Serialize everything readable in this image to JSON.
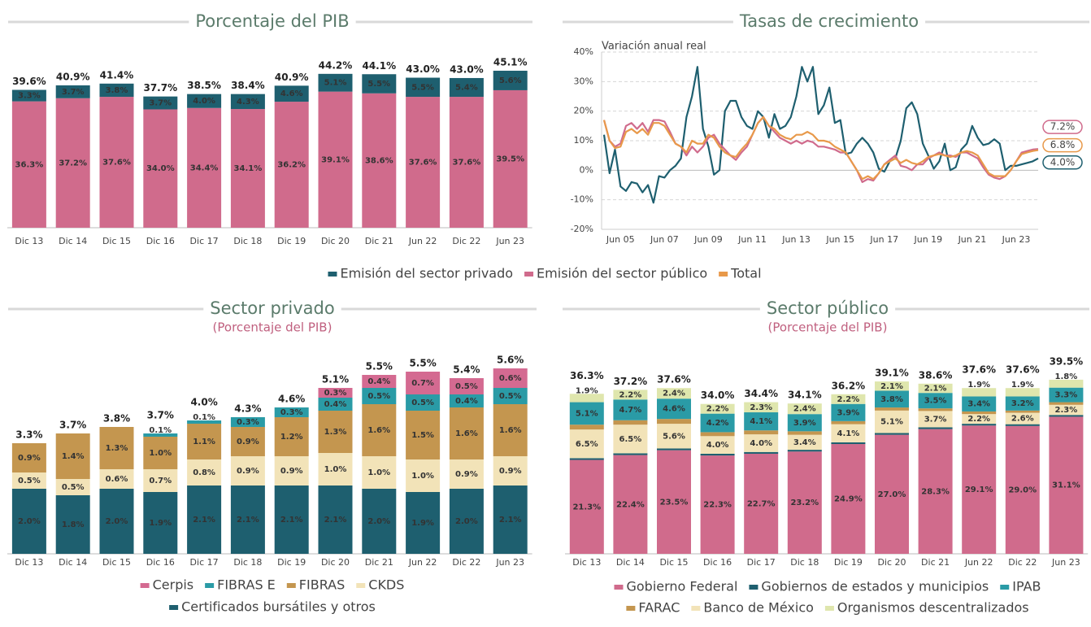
{
  "chart_data": [
    {
      "type": "stacked_bar",
      "title": "Porcentaje del PIB",
      "categories": [
        "Dic 13",
        "Dic 14",
        "Dic 15",
        "Dic 16",
        "Dic 17",
        "Dic 18",
        "Dic 19",
        "Dic 20",
        "Dic 21",
        "Jun 22",
        "Dic 22",
        "Jun 23"
      ],
      "series": [
        {
          "color": "#d06b8c",
          "values": [
            36.3,
            37.2,
            37.6,
            34.0,
            34.4,
            34.1,
            36.2,
            39.1,
            38.6,
            37.6,
            37.6,
            39.5
          ],
          "value_labels": [
            "36.3%",
            "37.2%",
            "37.6%",
            "34.0%",
            "34.4%",
            "34.1%",
            "36.2%",
            "39.1%",
            "38.6%",
            "37.6%",
            "37.6%",
            "39.5%"
          ]
        },
        {
          "color": "#1e5f6f",
          "values": [
            3.3,
            3.7,
            3.8,
            3.7,
            4.0,
            4.3,
            4.6,
            5.1,
            5.5,
            5.5,
            5.4,
            5.6
          ],
          "value_labels": [
            "3.3%",
            "3.7%",
            "3.8%",
            "3.7%",
            "4.0%",
            "4.3%",
            "4.6%",
            "5.1%",
            "5.5%",
            "5.5%",
            "5.4%",
            "5.6%"
          ]
        }
      ],
      "totals": [
        39.6,
        40.9,
        41.4,
        37.7,
        38.5,
        38.4,
        40.9,
        44.2,
        44.1,
        43.0,
        43.0,
        45.1
      ],
      "total_labels": [
        "39.6%",
        "40.9%",
        "41.4%",
        "37.7%",
        "38.5%",
        "38.4%",
        "40.9%",
        "44.2%",
        "44.1%",
        "43.0%",
        "43.0%",
        "45.1%"
      ],
      "ylim": [
        0,
        50
      ]
    },
    {
      "type": "line",
      "title": "Tasas de crecimiento",
      "annotation": "Variación anual real",
      "categories": [
        null,
        null,
        null,
        "Jun 05",
        null,
        null,
        null,
        null,
        null,
        null,
        null,
        "Jun 07",
        null,
        null,
        null,
        null,
        null,
        null,
        null,
        "Jun 09",
        null,
        null,
        null,
        null,
        null,
        null,
        null,
        "Jun 11",
        null,
        null,
        null,
        null,
        null,
        null,
        null,
        "Jun 13",
        null,
        null,
        null,
        null,
        null,
        null,
        null,
        "Jun 15",
        null,
        null,
        null,
        null,
        null,
        null,
        null,
        "Jun 17",
        null,
        null,
        null,
        null,
        null,
        null,
        null,
        "Jun 19",
        null,
        null,
        null,
        null,
        null,
        null,
        null,
        "Jun 21",
        null,
        null,
        null,
        null,
        null,
        null,
        null,
        "Jun 23",
        null,
        null,
        null,
        null
      ],
      "series": [
        {
          "name": "Emisión del sector privado",
          "color": "#1e5f6f",
          "end_label": "4.0%",
          "values": [
            12,
            -1,
            7,
            -5.5,
            -7,
            -4,
            -4.5,
            -7.5,
            -5,
            -11,
            -2,
            -2.5,
            0,
            1.5,
            4,
            18,
            25,
            35,
            14,
            8,
            -1.5,
            0,
            20,
            23.5,
            23.5,
            18,
            15,
            14,
            20,
            18,
            11,
            19,
            14,
            15,
            18,
            25,
            35,
            30,
            35,
            19,
            22,
            28,
            16,
            17,
            5.5,
            6,
            9,
            11,
            9,
            6,
            0.5,
            -0.5,
            3,
            4,
            10,
            21,
            23,
            19,
            9,
            5,
            0.5,
            3,
            9,
            0,
            1,
            7,
            9,
            15,
            11,
            8.5,
            9,
            10.5,
            9,
            0,
            1.5,
            1.5,
            2,
            2.5,
            3,
            4.0
          ]
        },
        {
          "name": "Emisión del sector público",
          "color": "#d06b8c",
          "end_label": "7.2%",
          "values": [
            17,
            10,
            8,
            9,
            15,
            16,
            14,
            16,
            13,
            17,
            17,
            16.5,
            13,
            9,
            8,
            5,
            8,
            6,
            8,
            11,
            12,
            9,
            7,
            5,
            3.5,
            6,
            8,
            12,
            16,
            18,
            15,
            13,
            11,
            10,
            9,
            10,
            9,
            10,
            9.5,
            8,
            8,
            7.5,
            7,
            6,
            6,
            3,
            0,
            -4,
            -3,
            -3.5,
            -1,
            2,
            3.5,
            5,
            1.5,
            1,
            0,
            2,
            2,
            4,
            5,
            6,
            5,
            5,
            4.5,
            6,
            6,
            5,
            4,
            1,
            -1.5,
            -2.5,
            -3,
            -2,
            0,
            3,
            6,
            6.5,
            7,
            7.2
          ]
        },
        {
          "name": "Total",
          "color": "#e8994a",
          "end_label": "6.8%",
          "values": [
            17,
            10,
            7.5,
            8,
            13,
            14,
            12.5,
            14,
            12,
            16,
            16,
            15,
            12,
            9,
            8,
            6,
            10,
            9,
            9,
            12,
            11,
            8,
            6,
            5,
            4.5,
            7,
            9,
            12,
            16,
            18,
            15,
            14,
            12,
            11,
            10.5,
            12,
            12,
            13,
            12,
            10,
            10,
            9.5,
            8,
            7,
            6,
            3,
            0,
            -3,
            -2,
            -3,
            -1,
            2,
            3,
            4,
            2.5,
            3.5,
            2.5,
            2,
            3,
            4.5,
            5,
            5.5,
            5,
            4.5,
            5,
            6,
            6.5,
            6,
            5,
            2,
            -1,
            -2,
            -2,
            -2,
            0,
            3,
            5.5,
            6,
            6.5,
            6.8
          ]
        }
      ],
      "ylim": [
        -20,
        40
      ],
      "yticks": [
        {
          "value": -20,
          "label": "-20%"
        },
        {
          "value": -10,
          "label": "-10%"
        },
        {
          "value": 0,
          "label": "0%"
        },
        {
          "value": 10,
          "label": "10%"
        },
        {
          "value": 20,
          "label": "20%"
        },
        {
          "value": 30,
          "label": "30%"
        },
        {
          "value": 40,
          "label": "40%"
        }
      ],
      "grid": true
    },
    {
      "type": "stacked_bar",
      "title": "Sector privado",
      "subtitle": "(Porcentaje del PIB)",
      "categories": [
        "Dic 13",
        "Dic 14",
        "Dic 15",
        "Dic 16",
        "Dic 17",
        "Dic 18",
        "Dic 19",
        "Dic 20",
        "Dic 21",
        "Jun 22",
        "Dic 22",
        "Jun 23"
      ],
      "series": [
        {
          "name": "Cerpis",
          "color": "#d46a91",
          "values": [
            null,
            null,
            null,
            null,
            null,
            null,
            null,
            0.3,
            0.4,
            0.7,
            0.5,
            0.6
          ],
          "value_labels": [
            null,
            null,
            null,
            null,
            null,
            null,
            null,
            "0.3%",
            "0.4%",
            "0.7%",
            "0.5%",
            "0.6%"
          ]
        },
        {
          "name": "FIBRAS E",
          "color": "#2a9ba6",
          "values": [
            null,
            null,
            null,
            0.1,
            0.1,
            0.3,
            0.3,
            0.4,
            0.5,
            0.5,
            0.4,
            0.5
          ],
          "value_labels": [
            null,
            null,
            null,
            "0.1%",
            "0.1%",
            "0.3%",
            "0.3%",
            "0.4%",
            "0.5%",
            "0.5%",
            "0.4%",
            "0.5%"
          ]
        },
        {
          "name": "FIBRAS",
          "color": "#c4964f",
          "values": [
            0.9,
            1.4,
            1.3,
            1.0,
            1.1,
            0.9,
            1.2,
            1.3,
            1.6,
            1.5,
            1.6,
            1.6
          ],
          "value_labels": [
            "0.9%",
            "1.4%",
            "1.3%",
            "1.0%",
            "1.1%",
            "0.9%",
            "1.2%",
            "1.3%",
            "1.6%",
            "1.5%",
            "1.6%",
            "1.6%"
          ]
        },
        {
          "name": "CKDS",
          "color": "#f2e3b8",
          "values": [
            0.5,
            0.5,
            0.6,
            0.7,
            0.8,
            0.9,
            0.9,
            1.0,
            1.0,
            1.0,
            0.9,
            0.9
          ],
          "value_labels": [
            "0.5%",
            "0.5%",
            "0.6%",
            "0.7%",
            "0.8%",
            "0.9%",
            "0.9%",
            "1.0%",
            "1.0%",
            "1.0%",
            "0.9%",
            "0.9%"
          ]
        },
        {
          "name": "Certificados bursátiles y otros",
          "color": "#1e5f6f",
          "values": [
            2.0,
            1.8,
            2.0,
            1.9,
            2.1,
            2.1,
            2.1,
            2.1,
            2.0,
            1.9,
            2.0,
            2.1
          ],
          "value_labels": [
            "2.0%",
            "1.8%",
            "2.0%",
            "1.9%",
            "2.1%",
            "2.1%",
            "2.1%",
            "2.1%",
            "2.0%",
            "1.9%",
            "2.0%",
            "2.1%"
          ]
        }
      ],
      "totals": [
        3.3,
        3.7,
        3.8,
        3.7,
        4.0,
        4.3,
        4.6,
        5.1,
        5.5,
        5.5,
        5.4,
        5.6
      ],
      "total_labels": [
        "3.3%",
        "3.7%",
        "3.8%",
        "3.7%",
        "4.0%",
        "4.3%",
        "4.6%",
        "5.1%",
        "5.5%",
        "5.5%",
        "5.4%",
        "5.6%"
      ],
      "ylim": [
        0,
        7
      ]
    },
    {
      "type": "stacked_bar",
      "title": "Sector público",
      "subtitle": "(Porcentaje del PIB)",
      "categories": [
        "Dic 13",
        "Dic 14",
        "Dic 15",
        "Dic 16",
        "Dic 17",
        "Dic 18",
        "Dic 19",
        "Dic 20",
        "Dic 21",
        "Jun 22",
        "Dic 22",
        "Jun 23"
      ],
      "series": [
        {
          "name": "Gobierno Federal",
          "color": "#d06b8c",
          "values": [
            21.3,
            22.4,
            23.5,
            22.3,
            22.7,
            23.2,
            24.9,
            27.0,
            28.3,
            29.1,
            29.0,
            31.1
          ],
          "value_labels": [
            "21.3%",
            "22.4%",
            "23.5%",
            "22.3%",
            "22.7%",
            "23.2%",
            "24.9%",
            "27.0%",
            "28.3%",
            "29.1%",
            "29.0%",
            "31.1%"
          ]
        },
        {
          "name": "Gobiernos de estados y municipios",
          "color": "#1e5f6f",
          "values": [
            0.4,
            0.4,
            0.4,
            0.4,
            0.4,
            0.4,
            0.4,
            0.4,
            0.4,
            0.4,
            0.4,
            0.4
          ]
        },
        {
          "name": "IPAB",
          "color": "#2a9ba6",
          "values": [
            5.1,
            4.7,
            4.6,
            4.2,
            4.1,
            3.9,
            3.9,
            3.8,
            3.5,
            3.4,
            3.2,
            3.3
          ],
          "value_labels": [
            "5.1%",
            "4.7%",
            "4.6%",
            "4.2%",
            "4.1%",
            "3.9%",
            "3.9%",
            "3.8%",
            "3.5%",
            "3.4%",
            "3.2%",
            "3.3%"
          ]
        },
        {
          "name": "FARAC",
          "color": "#c4964f",
          "values": [
            1.1,
            1.0,
            1.1,
            0.9,
            0.9,
            0.8,
            0.7,
            0.7,
            0.6,
            0.6,
            0.5,
            0.6
          ]
        },
        {
          "name": "Banco de México",
          "color": "#f2e3b8",
          "values": [
            6.5,
            6.5,
            5.6,
            4.0,
            4.0,
            3.4,
            4.1,
            5.1,
            3.7,
            2.2,
            2.6,
            2.3
          ],
          "value_labels": [
            "6.5%",
            "6.5%",
            "5.6%",
            "4.0%",
            "4.0%",
            "3.4%",
            "4.1%",
            "5.1%",
            "3.7%",
            "2.2%",
            "2.6%",
            "2.3%"
          ]
        },
        {
          "name": "Organismos descentralizados",
          "color": "#dfe6ad",
          "values": [
            1.9,
            2.2,
            2.4,
            2.2,
            2.3,
            2.4,
            2.2,
            2.1,
            2.1,
            1.9,
            1.9,
            1.8
          ],
          "value_labels": [
            "1.9%",
            "2.2%",
            "2.4%",
            "2.2%",
            "2.3%",
            "2.4%",
            "2.2%",
            "2.1%",
            "2.1%",
            "1.9%",
            "1.9%",
            "1.8%"
          ]
        }
      ],
      "totals": [
        36.3,
        37.2,
        37.6,
        34.0,
        34.4,
        34.1,
        36.2,
        39.1,
        38.6,
        37.6,
        37.6,
        39.5
      ],
      "total_labels": [
        "36.3%",
        "37.2%",
        "37.6%",
        "34.0%",
        "34.4%",
        "34.1%",
        "36.2%",
        "39.1%",
        "38.6%",
        "37.6%",
        "37.6%",
        "39.5%"
      ],
      "ylim": [
        0,
        50
      ]
    }
  ]
}
